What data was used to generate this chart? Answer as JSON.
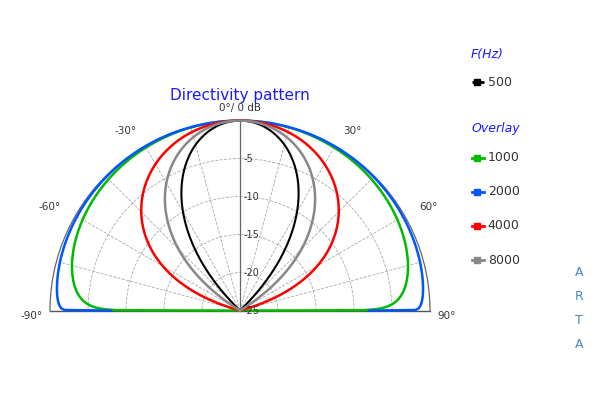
{
  "title": "Directivity pattern",
  "bg_color": "#ffffff",
  "title_color": "#1a1aff",
  "title_fontsize": 11,
  "db_rings": [
    0,
    -5,
    -10,
    -15,
    -20,
    -25
  ],
  "grid_color": "#aaaaaa",
  "grid_ls": "--",
  "grid_lw": 0.6,
  "series": [
    {
      "label": "500",
      "color": "#000000",
      "lw": 1.5,
      "n": 8.0
    },
    {
      "label": "1000",
      "color": "#00bb00",
      "lw": 1.8,
      "n": 0.18
    },
    {
      "label": "2000",
      "color": "#0055ff",
      "lw": 1.8,
      "n": 0.04
    },
    {
      "label": "4000",
      "color": "#ff0000",
      "lw": 1.8,
      "n": 2.2
    },
    {
      "label": "8000",
      "color": "#888888",
      "lw": 1.8,
      "n": 4.5
    }
  ],
  "legend": {
    "fhz_title": "F(Hz)",
    "overlay_title": "Overlay",
    "title_color": "#1a1aff",
    "text_color": "#333333",
    "marker_colors": {
      "500": "#000000",
      "1000": "#00bb00",
      "2000": "#0055ff",
      "4000": "#ff0000",
      "8000": "#888888"
    }
  },
  "arta_color": "#4488cc"
}
